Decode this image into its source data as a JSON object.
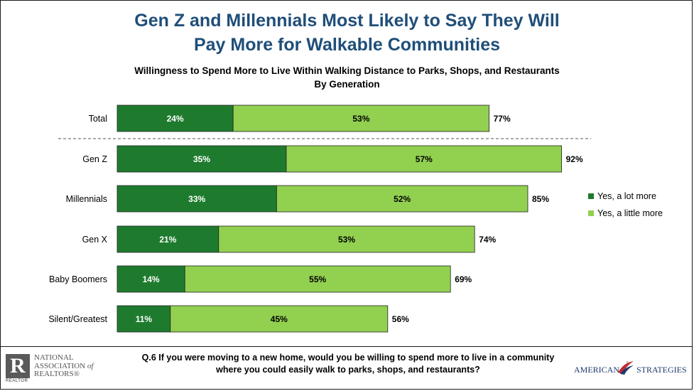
{
  "header": {
    "title_line1": "Gen Z and Millennials Most Likely to Say They Will",
    "title_line2": "Pay More for Walkable Communities",
    "subtitle_line1": "Willingness to Spend More to Live Within Walking Distance to Parks, Shops, and Restaurants",
    "subtitle_line2": "By Generation"
  },
  "legend": {
    "items": [
      {
        "label": "Yes, a lot more",
        "color": "#1e7b2e"
      },
      {
        "label": "Yes, a little more",
        "color": "#92d050"
      }
    ]
  },
  "footer": {
    "question_line1": "Q.6 If you were moving to a new home, would you be willing to spend more to live in a community",
    "question_line2": "where you could easily walk to parks, shops, and restaurants?",
    "nar_logo": {
      "mark": "R",
      "tag": "REALTOR",
      "line1": "NATIONAL",
      "line2": "ASSOCIATION",
      "of": "of",
      "line3": "REALTORS®"
    },
    "as_logo": {
      "left": "AMERICAN",
      "right": "STRATEGIES"
    }
  },
  "chart_data": {
    "type": "bar",
    "orientation": "horizontal",
    "stacked": true,
    "categories": [
      "Total",
      "Gen Z",
      "Millennials",
      "Gen X",
      "Baby Boomers",
      "Silent/Greatest"
    ],
    "series": [
      {
        "name": "Yes, a lot more",
        "color": "#1e7b2e",
        "values": [
          24,
          35,
          33,
          21,
          14,
          11
        ],
        "labels": [
          "24%",
          "35%",
          "33%",
          "21%",
          "14%",
          "11%"
        ]
      },
      {
        "name": "Yes, a little more",
        "color": "#92d050",
        "values": [
          53,
          57,
          52,
          53,
          55,
          45
        ],
        "labels": [
          "53%",
          "57%",
          "52%",
          "53%",
          "55%",
          "45%"
        ]
      }
    ],
    "totals": [
      77,
      92,
      85,
      74,
      69,
      56
    ],
    "total_labels": [
      "77%",
      "92%",
      "85%",
      "74%",
      "69%",
      "56%"
    ],
    "xlim": [
      0,
      100
    ],
    "grid": false,
    "legend_position": "right"
  }
}
